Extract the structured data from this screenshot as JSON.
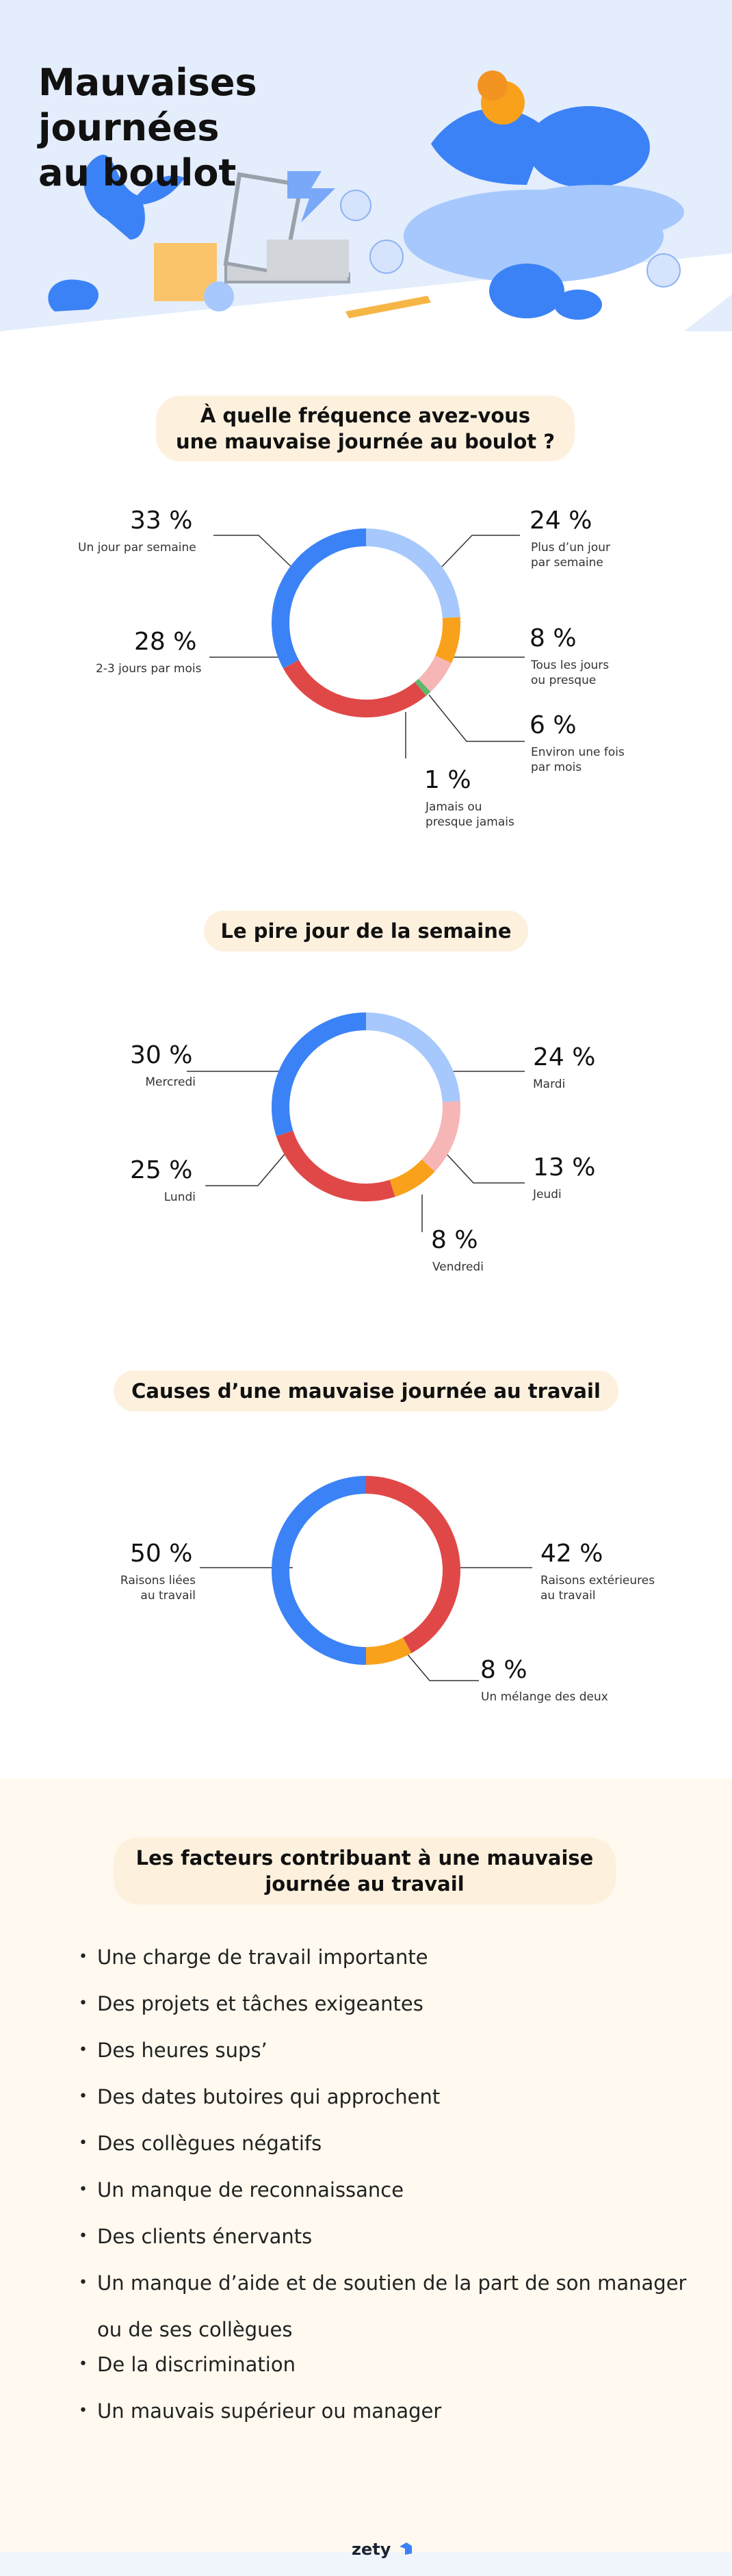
{
  "header": {
    "title": "Mauvaises journées\nau boulot"
  },
  "colors": {
    "blue": "#3b82f6",
    "light_blue": "#a6c8fd",
    "red": "#e04848",
    "orange": "#f9a11b",
    "pink": "#f6b6b6",
    "green": "#5fb86a",
    "pill": "#fdf1de",
    "beige": "#fff9ef"
  },
  "chart_data": [
    {
      "type": "pie",
      "title": "À quelle fréquence avez-vous\nune mauvaise journée au boulot ?",
      "slices": [
        {
          "label": "Plus d’un jour\npar semaine",
          "value": 24,
          "value_text": "24 %",
          "color": "#a6c8fd"
        },
        {
          "label": "Tous les jours\nou presque",
          "value": 8,
          "value_text": "8 %",
          "color": "#f9a11b"
        },
        {
          "label": "Environ une fois\npar mois",
          "value": 6,
          "value_text": "6 %",
          "color": "#f6b6b6"
        },
        {
          "label": "Jamais ou\npresque jamais",
          "value": 1,
          "value_text": "1 %",
          "color": "#5fb86a"
        },
        {
          "label": "2-3 jours par mois",
          "value": 28,
          "value_text": "28 %",
          "color": "#e04848"
        },
        {
          "label": "Un jour par semaine",
          "value": 33,
          "value_text": "33 %",
          "color": "#3b82f6"
        }
      ]
    },
    {
      "type": "pie",
      "title": "Le pire jour de la semaine",
      "slices": [
        {
          "label": "Mardi",
          "value": 24,
          "value_text": "24 %",
          "color": "#a6c8fd"
        },
        {
          "label": "Jeudi",
          "value": 13,
          "value_text": "13 %",
          "color": "#f6b6b6"
        },
        {
          "label": "Vendredi",
          "value": 8,
          "value_text": "8 %",
          "color": "#f9a11b"
        },
        {
          "label": "Lundi",
          "value": 25,
          "value_text": "25 %",
          "color": "#e04848"
        },
        {
          "label": "Mercredi",
          "value": 30,
          "value_text": "30 %",
          "color": "#3b82f6"
        }
      ]
    },
    {
      "type": "pie",
      "title": "Causes d’une mauvaise journée au travail",
      "slices": [
        {
          "label": "Raisons extérieures\nau travail",
          "value": 42,
          "value_text": "42 %",
          "color": "#e04848"
        },
        {
          "label": "Un mélange des deux",
          "value": 8,
          "value_text": "8 %",
          "color": "#f9a11b"
        },
        {
          "label": "Raisons liées\nau travail",
          "value": 50,
          "value_text": "50 %",
          "color": "#3b82f6"
        }
      ]
    }
  ],
  "factors": {
    "title": "Les facteurs contribuant à une mauvaise\njournée au travail",
    "items": [
      "Une charge de travail importante",
      "Des projets et tâches exigeantes",
      "Des heures sups’",
      "Des dates butoires qui approchent",
      "Des collègues négatifs",
      "Un manque de reconnaissance",
      "Des clients énervants",
      "Un manque d’aide et de soutien de la part de son manager ou de ses collègues",
      "De la discrimination",
      "Un mauvais supérieur ou manager"
    ]
  },
  "footer": {
    "logo": "zety"
  }
}
